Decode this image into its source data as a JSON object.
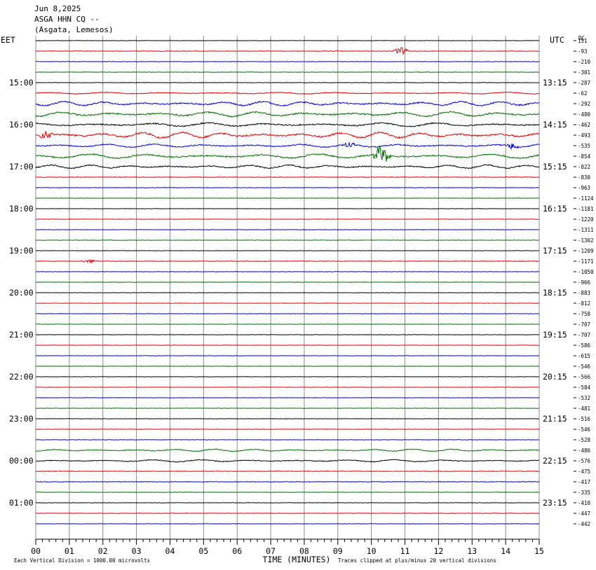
{
  "header": {
    "date": "Jun 8,2025",
    "channel": "ASGA HHN CQ --",
    "location": "(Asgata, Lemesos)"
  },
  "left_tz": "EET",
  "right_tz": "UTC",
  "dc_label": "DC",
  "chart_data": {
    "type": "line",
    "xlabel": "TIME (MINUTES)",
    "x_ticks": [
      "00",
      "01",
      "02",
      "03",
      "04",
      "05",
      "06",
      "07",
      "08",
      "09",
      "10",
      "11",
      "12",
      "13",
      "14",
      "15"
    ],
    "xlim": [
      0,
      15
    ],
    "trace_colors": [
      "#000000",
      "#e00000",
      "#0000e0",
      "#007000"
    ],
    "grid_color": "#8c8c8c",
    "left_time_labels": [
      "15:00",
      "16:00",
      "17:00",
      "18:00",
      "19:00",
      "20:00",
      "21:00",
      "22:00",
      "23:00",
      "00:00",
      "01:00"
    ],
    "right_time_labels": [
      "13:15",
      "14:15",
      "15:15",
      "16:15",
      "17:15",
      "18:15",
      "19:15",
      "20:15",
      "21:15",
      "22:15",
      "23:15"
    ],
    "dc_offsets": [
      "151",
      "-93",
      "-210",
      "-301",
      "-287",
      "-62",
      "-292",
      "-480",
      "-462",
      "-493",
      "-535",
      "-854",
      "-822",
      "-830",
      "-963",
      "-1124",
      "-1181",
      "-1220",
      "-1311",
      "-1302",
      "-1209",
      "-1171",
      "-1050",
      "-966",
      "-883",
      "-812",
      "-758",
      "-707",
      "-707",
      "-586",
      "-615",
      "-546",
      "-566",
      "-584",
      "-532",
      "-481",
      "-516",
      "-546",
      "-528",
      "-486",
      "-576",
      "-475",
      "-417",
      "-335",
      "-410",
      "-447",
      "-442"
    ],
    "trace_activity": [
      0.15,
      0.25,
      0.2,
      0.15,
      0.2,
      0.35,
      0.9,
      1.0,
      0.8,
      1.2,
      0.7,
      0.9,
      0.7,
      0.25,
      0.2,
      0.12,
      0.12,
      0.12,
      0.12,
      0.12,
      0.15,
      0.25,
      0.15,
      0.12,
      0.12,
      0.12,
      0.12,
      0.12,
      0.15,
      0.12,
      0.12,
      0.12,
      0.12,
      0.12,
      0.12,
      0.12,
      0.12,
      0.15,
      0.15,
      0.45,
      0.45,
      0.3,
      0.3,
      0.15,
      0.15,
      0.15,
      0.15
    ],
    "events": [
      {
        "trace": 1,
        "minute": 10.9,
        "amplitude": 6
      },
      {
        "trace": 9,
        "minute": 0.3,
        "amplitude": 7
      },
      {
        "trace": 10,
        "minute": 9.3,
        "amplitude": 5
      },
      {
        "trace": 10,
        "minute": 14.2,
        "amplitude": 5
      },
      {
        "trace": 11,
        "minute": 10.3,
        "amplitude": 18
      },
      {
        "trace": 21,
        "minute": 1.6,
        "amplitude": 3
      }
    ],
    "footer_left": "Each Vertical Division = 1000.00 microvolts",
    "footer_right": "Traces clipped at plus/minus 20 vertical divisions"
  }
}
